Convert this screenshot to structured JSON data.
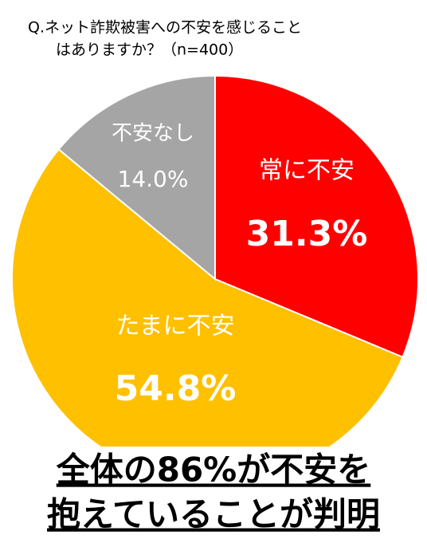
{
  "chart_data": {
    "type": "pie",
    "title": [
      "Q.ネット詐欺被害への不安を感じること",
      "はありますか？（n=400）"
    ],
    "categories": [
      "常に不安",
      "たまに不安",
      "不安なし"
    ],
    "values": [
      31.3,
      54.8,
      14.0
    ],
    "value_labels": [
      "31.3%",
      "54.8%",
      "14.0%"
    ],
    "colors": [
      "#ff0000",
      "#ffc000",
      "#a5a5a5"
    ],
    "annotation": [
      "全体の86%が不安を",
      "抱えていることが判明"
    ]
  }
}
